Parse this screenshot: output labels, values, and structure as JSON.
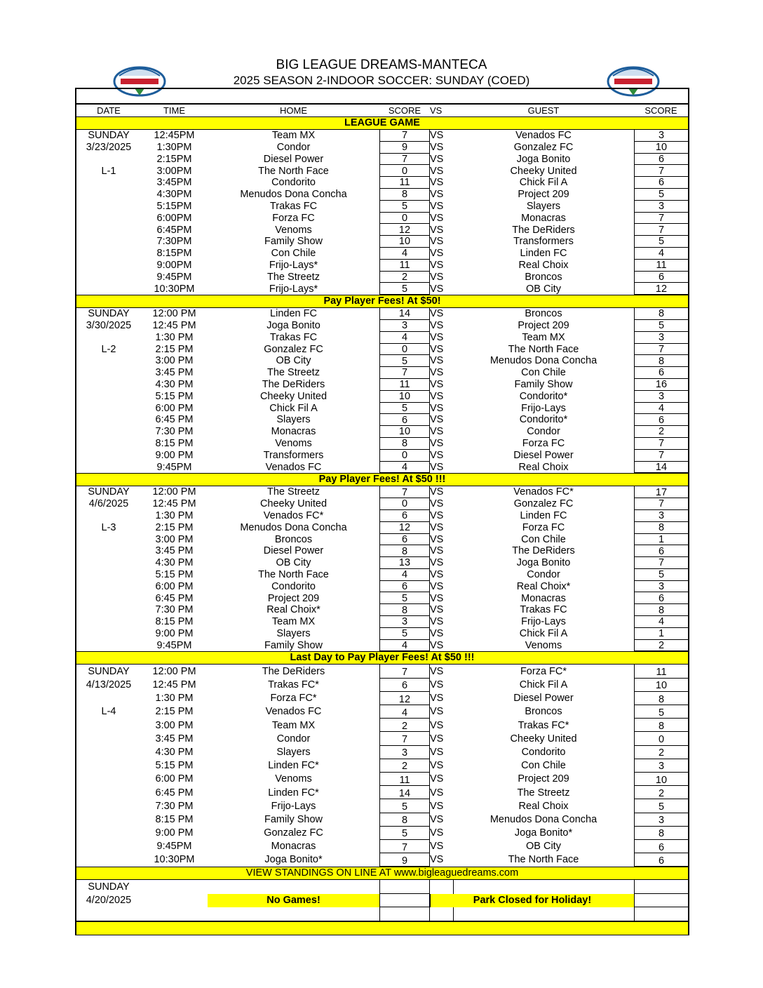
{
  "header": {
    "title": "BIG LEAGUE DREAMS-MANTECA",
    "subtitle": "2025 SEASON 2-INDOOR SOCCER: SUNDAY (COED)",
    "logo_text": "BIG LEAGUE DREAMS"
  },
  "columns": {
    "date": "DATE",
    "time": "TIME",
    "home": "HOME",
    "score": "SCORE",
    "vs": "VS",
    "guest": "GUEST",
    "score2": "SCORE"
  },
  "colors": {
    "highlight": "#ffff00"
  },
  "sections": [
    {
      "banner": "LEAGUE GAME",
      "date_lines": [
        "SUNDAY",
        "3/23/2025",
        "",
        "L-1"
      ],
      "games": [
        [
          "12:45PM",
          "Team MX",
          "7",
          "Venados FC",
          "3"
        ],
        [
          "1:30PM",
          "Condor",
          "9",
          "Gonzalez FC",
          "10"
        ],
        [
          "2:15PM",
          "Diesel Power",
          "7",
          "Joga Bonito",
          "6"
        ],
        [
          "3:00PM",
          "The North Face",
          "0",
          "Cheeky United",
          "7"
        ],
        [
          "3:45PM",
          "Condorito",
          "11",
          "Chick Fil A",
          "6"
        ],
        [
          "4:30PM",
          "Menudos Dona Concha",
          "8",
          "Project 209",
          "5"
        ],
        [
          "5:15PM",
          "Trakas FC",
          "5",
          "Slayers",
          "3"
        ],
        [
          "6:00PM",
          "Forza FC",
          "0",
          "Monacras",
          "7"
        ],
        [
          "6:45PM",
          "Venoms",
          "12",
          "The DeRiders",
          "7"
        ],
        [
          "7:30PM",
          "Family Show",
          "10",
          "Transformers",
          "5"
        ],
        [
          "8:15PM",
          "Con Chile",
          "4",
          "Linden FC",
          "4"
        ],
        [
          "9:00PM",
          "Frijo-Lays*",
          "11",
          "Real Choix",
          "11"
        ],
        [
          "9:45PM",
          "The Streetz",
          "2",
          "Broncos",
          "6"
        ],
        [
          "10:30PM",
          "Frijo-Lays*",
          "5",
          "OB City",
          "12"
        ]
      ]
    },
    {
      "banner": "Pay Player Fees! At $50!",
      "date_lines": [
        "SUNDAY",
        "3/30/2025",
        "",
        "L-2"
      ],
      "games": [
        [
          "12:00 PM",
          "Linden FC",
          "14",
          "Broncos",
          "8"
        ],
        [
          "12:45 PM",
          "Joga Bonito",
          "3",
          "Project 209",
          "5"
        ],
        [
          "1:30 PM",
          "Trakas FC",
          "4",
          "Team MX",
          "3"
        ],
        [
          "2:15 PM",
          "Gonzalez FC",
          "0",
          "The North Face",
          "7"
        ],
        [
          "3:00 PM",
          "OB City",
          "5",
          "Menudos Dona Concha",
          "8"
        ],
        [
          "3:45 PM",
          "The Streetz",
          "7",
          "Con Chile",
          "6"
        ],
        [
          "4:30 PM",
          "The DeRiders",
          "11",
          "Family Show",
          "16"
        ],
        [
          "5:15 PM",
          "Cheeky United",
          "10",
          "Condorito*",
          "3"
        ],
        [
          "6:00 PM",
          "Chick Fil A",
          "5",
          "Frijo-Lays",
          "4"
        ],
        [
          "6:45 PM",
          "Slayers",
          "6",
          "Condorito*",
          "6"
        ],
        [
          "7:30 PM",
          "Monacras",
          "10",
          "Condor",
          "2"
        ],
        [
          "8:15 PM",
          "Venoms",
          "8",
          "Forza FC",
          "7"
        ],
        [
          "9:00 PM",
          "Transformers",
          "0",
          "Diesel Power",
          "7"
        ],
        [
          "9:45PM",
          "Venados FC",
          "4",
          "Real Choix",
          "14"
        ]
      ]
    },
    {
      "banner": "Pay Player Fees! At $50 !!!",
      "date_lines": [
        "SUNDAY",
        "4/6/2025",
        "",
        "L-3"
      ],
      "games": [
        [
          "12:00 PM",
          "The Streetz",
          "7",
          "Venados FC*",
          "17"
        ],
        [
          "12:45 PM",
          "Cheeky United",
          "0",
          "Gonzalez FC",
          "7"
        ],
        [
          "1:30 PM",
          "Venados FC*",
          "6",
          "Linden FC",
          "3"
        ],
        [
          "2:15 PM",
          "Menudos Dona Concha",
          "12",
          "Forza FC",
          "8"
        ],
        [
          "3:00 PM",
          "Broncos",
          "6",
          "Con Chile",
          "1"
        ],
        [
          "3:45 PM",
          "Diesel Power",
          "8",
          "The DeRiders",
          "6"
        ],
        [
          "4:30 PM",
          "OB City",
          "13",
          "Joga Bonito",
          "7"
        ],
        [
          "5:15 PM",
          "The North Face",
          "4",
          "Condor",
          "5"
        ],
        [
          "6:00 PM",
          "Condorito",
          "6",
          "Real Choix*",
          "3"
        ],
        [
          "6:45 PM",
          "Project 209",
          "5",
          "Monacras",
          "6"
        ],
        [
          "7:30 PM",
          "Real Choix*",
          "8",
          "Trakas FC",
          "8"
        ],
        [
          "8:15 PM",
          "Team MX",
          "3",
          "Frijo-Lays",
          "4"
        ],
        [
          "9:00 PM",
          "Slayers",
          "5",
          "Chick Fil A",
          "1"
        ],
        [
          "9:45PM",
          "Family Show",
          "4",
          "Venoms",
          "2"
        ]
      ]
    },
    {
      "banner": "Last Day to Pay Player Fees! At $50 !!!",
      "date_lines": [
        "SUNDAY",
        "4/13/2025",
        "",
        "L-4"
      ],
      "games": [
        [
          "12:00 PM",
          "The DeRiders",
          "7",
          "Forza FC*",
          "11"
        ],
        [
          "12:45 PM",
          "Trakas FC*",
          "6",
          "Chick Fil A",
          "10"
        ],
        [
          "1:30 PM",
          "Forza FC*",
          "12",
          "Diesel Power",
          "8"
        ],
        [
          "2:15 PM",
          "Venados FC",
          "4",
          "Broncos",
          "5"
        ],
        [
          "3:00 PM",
          "Team MX",
          "2",
          "Trakas FC*",
          "8"
        ],
        [
          "3:45 PM",
          "Condor",
          "7",
          "Cheeky United",
          "0"
        ],
        [
          "4:30 PM",
          "Slayers",
          "3",
          "Condorito",
          "2"
        ],
        [
          "5:15 PM",
          "Linden FC*",
          "2",
          "Con Chile",
          "3"
        ],
        [
          "6:00 PM",
          "Venoms",
          "11",
          "Project 209",
          "10"
        ],
        [
          "6:45 PM",
          "Linden FC*",
          "14",
          "The Streetz",
          "2"
        ],
        [
          "7:30 PM",
          "Frijo-Lays",
          "5",
          "Real Choix",
          "5"
        ],
        [
          "8:15 PM",
          "Family Show",
          "8",
          "Menudos Dona Concha",
          "3"
        ],
        [
          "9:00 PM",
          "Gonzalez FC",
          "5",
          "Joga Bonito*",
          "8"
        ],
        [
          "9:45PM",
          "Monacras",
          "7",
          "OB City",
          "6"
        ],
        [
          "10:30PM",
          "Joga Bonito*",
          "9",
          "The North Face",
          "6"
        ]
      ]
    }
  ],
  "vs_label": "VS",
  "standings": "VIEW STANDINGS ON LINE AT www.bigleaguedreams.com",
  "holiday": {
    "day": "SUNDAY",
    "date": "4/20/2025",
    "home_note": "No Games!",
    "guest_note": "Park Closed for Holiday!"
  }
}
